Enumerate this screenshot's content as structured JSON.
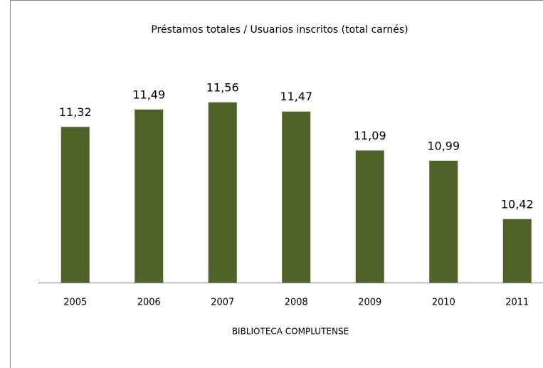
{
  "chart_data": {
    "type": "bar",
    "title": "Préstamos totales / Usuarios inscritos (total carnés)",
    "x_label": "BIBLIOTECA COMPLUTENSE",
    "categories": [
      "2005",
      "2006",
      "2007",
      "2008",
      "2009",
      "2010",
      "2011"
    ],
    "values": [
      11.32,
      11.49,
      11.56,
      11.47,
      11.09,
      10.99,
      10.42
    ],
    "value_labels": [
      "11,32",
      "11,49",
      "11,56",
      "11,47",
      "11,09",
      "10,99",
      "10,42"
    ],
    "color": "#4f6228",
    "ylim": [
      9.8,
      11.6
    ]
  }
}
